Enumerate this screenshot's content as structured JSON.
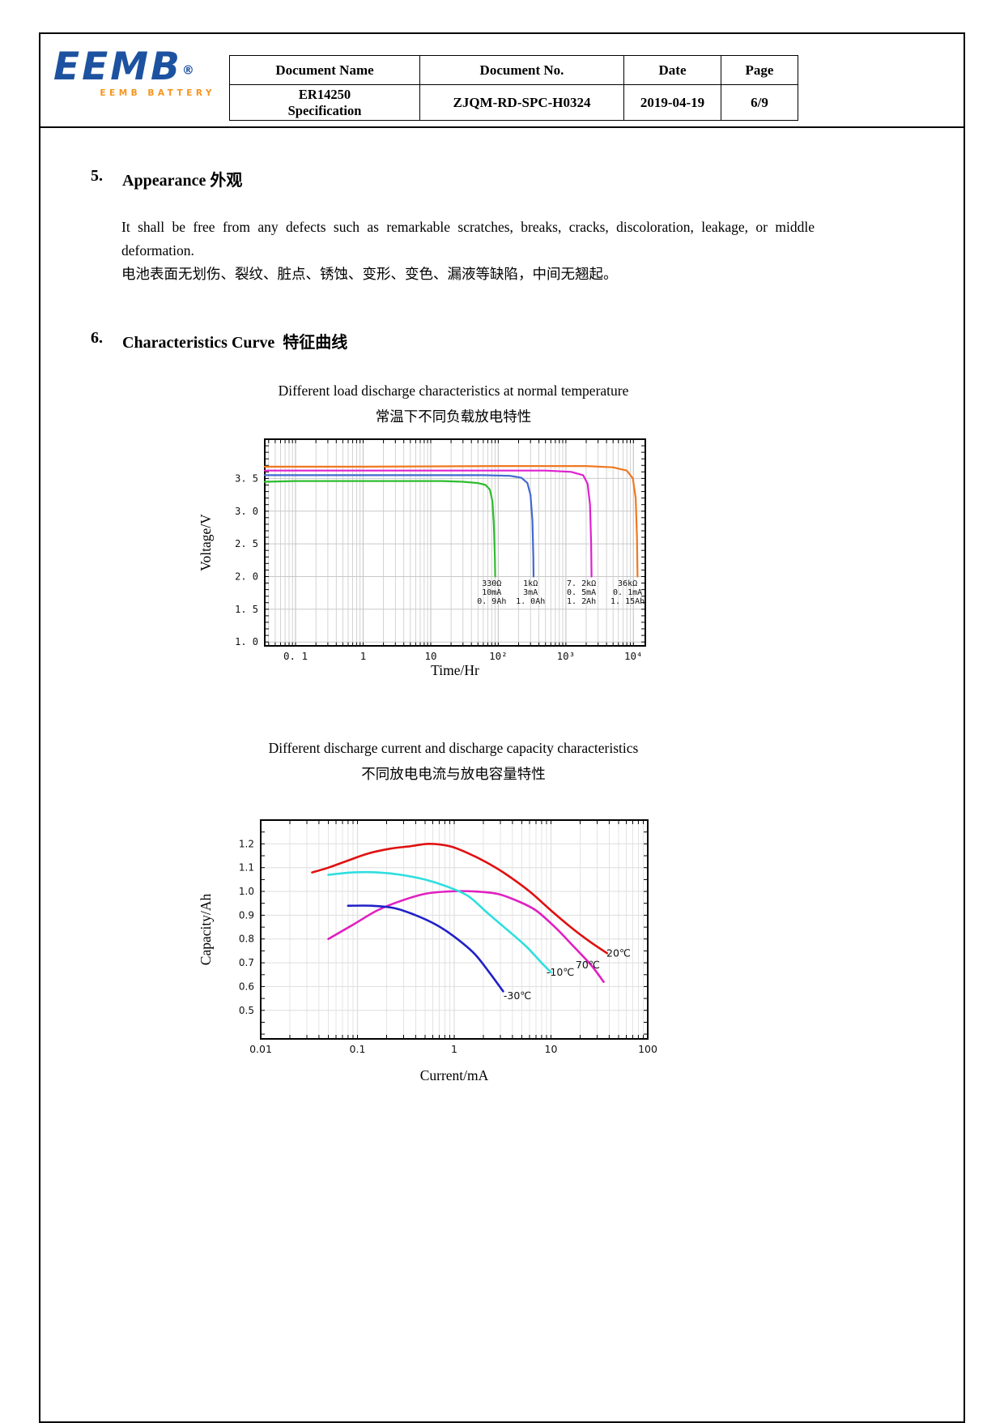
{
  "logo": {
    "text": "EEMB",
    "registered": "®",
    "subtext": "EEMB BATTERY",
    "blue": "#1d52a0",
    "orange": "#f7941d"
  },
  "doc_table": {
    "headers": [
      "Document Name",
      "Document No.",
      "Date",
      "Page"
    ],
    "doc_name": "ER14250\nSpecification",
    "doc_no": "ZJQM-RD-SPC-H0324",
    "date": "2019-04-19",
    "page": "6/9"
  },
  "section5": {
    "number": "5.",
    "title": "Appearance 外观",
    "body_en": "It shall be free from any defects such as remarkable scratches, breaks, cracks, discoloration, leakage, or middle deformation.",
    "body_zh": "电池表面无划伤、裂纹、脏点、锈蚀、变形、变色、漏液等缺陷，中间无翘起。"
  },
  "section6": {
    "number": "6.",
    "title": "Characteristics Curve  特征曲线"
  },
  "chart_data": [
    {
      "id": "load-discharge",
      "type": "line",
      "title": "Different load discharge characteristics at normal temperature",
      "title_zh": "常温下不同负载放电特性",
      "xlabel": "Time/Hr",
      "ylabel": "Voltage/V",
      "xscale": "log",
      "xlim": [
        0.035,
        15000
      ],
      "ylim": [
        0.94,
        4.1
      ],
      "yticks": [
        1.0,
        1.5,
        2.0,
        2.5,
        3.0,
        3.5
      ],
      "ytick_labels": [
        "1. 0",
        "1. 5",
        "2. 0",
        "2. 5",
        "3. 0",
        "3. 5"
      ],
      "xticks": [
        0.1,
        1,
        10,
        100,
        1000,
        10000
      ],
      "xtick_labels": [
        "0. 1",
        "1",
        "10",
        "10²",
        "10³",
        "10⁴"
      ],
      "grid_color": "#c9c9c9",
      "legend_position": "none",
      "series": [
        {
          "name": "330Ω 10mA 0.9Ah",
          "color": "#2ebd2e",
          "points": [
            [
              0.035,
              3.45
            ],
            [
              0.1,
              3.46
            ],
            [
              1,
              3.46
            ],
            [
              5,
              3.46
            ],
            [
              15,
              3.46
            ],
            [
              30,
              3.45
            ],
            [
              50,
              3.43
            ],
            [
              65,
              3.4
            ],
            [
              75,
              3.33
            ],
            [
              82,
              3.15
            ],
            [
              86,
              2.8
            ],
            [
              89,
              2.3
            ],
            [
              90,
              2.0
            ]
          ]
        },
        {
          "name": "1kΩ 3mA 1.0Ah",
          "color": "#4169d0",
          "points": [
            [
              0.035,
              3.55
            ],
            [
              1,
              3.55
            ],
            [
              10,
              3.55
            ],
            [
              60,
              3.55
            ],
            [
              150,
              3.54
            ],
            [
              220,
              3.51
            ],
            [
              270,
              3.43
            ],
            [
              300,
              3.25
            ],
            [
              320,
              2.85
            ],
            [
              330,
              2.3
            ],
            [
              333,
              2.0
            ]
          ]
        },
        {
          "name": "7.2kΩ 0.5mA 1.2Ah",
          "color": "#e020d0",
          "points": [
            [
              0.035,
              3.62
            ],
            [
              1,
              3.62
            ],
            [
              50,
              3.62
            ],
            [
              500,
              3.62
            ],
            [
              1200,
              3.6
            ],
            [
              1800,
              3.55
            ],
            [
              2100,
              3.42
            ],
            [
              2280,
              3.1
            ],
            [
              2370,
              2.5
            ],
            [
              2400,
              2.0
            ]
          ]
        },
        {
          "name": "36kΩ 0.1mA 1.15Ah",
          "color": "#f07820",
          "points": [
            [
              0.035,
              3.68
            ],
            [
              1,
              3.68
            ],
            [
              100,
              3.69
            ],
            [
              2000,
              3.69
            ],
            [
              5000,
              3.67
            ],
            [
              8000,
              3.62
            ],
            [
              9800,
              3.5
            ],
            [
              10800,
              3.2
            ],
            [
              11300,
              2.6
            ],
            [
              11500,
              2.0
            ]
          ]
        }
      ],
      "annotations": [
        {
          "text": "330Ω\n10mA\n0. 9Ah",
          "x": 80,
          "y": 1.98
        },
        {
          "text": "1kΩ\n3mA\n1. 0Ah",
          "x": 300,
          "y": 1.98
        },
        {
          "text": "7. 2kΩ\n0. 5mA\n1. 2Ah",
          "x": 1700,
          "y": 1.98
        },
        {
          "text": "36kΩ\n0. 1mA\n1. 15Ah",
          "x": 8200,
          "y": 1.98
        }
      ]
    },
    {
      "id": "capacity-current",
      "type": "line",
      "title": "Different discharge current and discharge capacity characteristics",
      "title_zh": "不同放电电流与放电容量特性",
      "xlabel": "Current/mA",
      "ylabel": "Capacity/Ah",
      "xscale": "log",
      "xlim": [
        0.01,
        100
      ],
      "ylim": [
        0.38,
        1.3
      ],
      "yticks": [
        0.5,
        0.6,
        0.7,
        0.8,
        0.9,
        1.0,
        1.1,
        1.2
      ],
      "ytick_labels": [
        "0.5",
        "0.6",
        "0.7",
        "0.8",
        "0.9",
        "1.0",
        "1.1",
        "1.2"
      ],
      "xticks": [
        0.01,
        0.1,
        1,
        10,
        100
      ],
      "xtick_labels": [
        "0.01",
        "0.1",
        "1",
        "10",
        "100"
      ],
      "grid_color": "#dedede",
      "legend_position": "inline-labels",
      "series": [
        {
          "name": "20℃",
          "color": "#e01010",
          "points": [
            [
              0.034,
              1.08
            ],
            [
              0.05,
              1.1
            ],
            [
              0.08,
              1.13
            ],
            [
              0.13,
              1.16
            ],
            [
              0.22,
              1.18
            ],
            [
              0.35,
              1.19
            ],
            [
              0.55,
              1.2
            ],
            [
              0.9,
              1.19
            ],
            [
              1.4,
              1.16
            ],
            [
              2.2,
              1.12
            ],
            [
              3.5,
              1.07
            ],
            [
              6,
              1.0
            ],
            [
              10,
              0.92
            ],
            [
              16,
              0.85
            ],
            [
              25,
              0.79
            ],
            [
              38,
              0.74
            ]
          ]
        },
        {
          "name": "70℃",
          "color": "#e020c0",
          "points": [
            [
              0.05,
              0.8
            ],
            [
              0.09,
              0.86
            ],
            [
              0.16,
              0.92
            ],
            [
              0.28,
              0.96
            ],
            [
              0.5,
              0.99
            ],
            [
              0.9,
              1.0
            ],
            [
              1.6,
              1.0
            ],
            [
              2.8,
              0.99
            ],
            [
              4.5,
              0.96
            ],
            [
              7,
              0.92
            ],
            [
              11,
              0.85
            ],
            [
              17,
              0.77
            ],
            [
              26,
              0.69
            ],
            [
              35,
              0.62
            ]
          ]
        },
        {
          "name": "-10℃",
          "color": "#30dede",
          "points": [
            [
              0.05,
              1.07
            ],
            [
              0.09,
              1.08
            ],
            [
              0.16,
              1.08
            ],
            [
              0.28,
              1.07
            ],
            [
              0.5,
              1.05
            ],
            [
              0.85,
              1.02
            ],
            [
              1.4,
              0.98
            ],
            [
              2.2,
              0.91
            ],
            [
              3.5,
              0.84
            ],
            [
              5.5,
              0.77
            ],
            [
              8,
              0.7
            ],
            [
              10,
              0.66
            ]
          ]
        },
        {
          "name": "-30℃",
          "color": "#2020c8",
          "points": [
            [
              0.08,
              0.94
            ],
            [
              0.14,
              0.94
            ],
            [
              0.24,
              0.93
            ],
            [
              0.4,
              0.9
            ],
            [
              0.65,
              0.86
            ],
            [
              1.0,
              0.81
            ],
            [
              1.6,
              0.74
            ],
            [
              2.3,
              0.66
            ],
            [
              3.2,
              0.58
            ]
          ]
        }
      ],
      "annotations": [
        {
          "text": "20℃",
          "x": 50,
          "y": 0.74
        },
        {
          "text": "70℃",
          "x": 24,
          "y": 0.69
        },
        {
          "text": "-10℃",
          "x": 12.5,
          "y": 0.66
        },
        {
          "text": "-30℃",
          "x": 4.5,
          "y": 0.56
        }
      ]
    }
  ]
}
